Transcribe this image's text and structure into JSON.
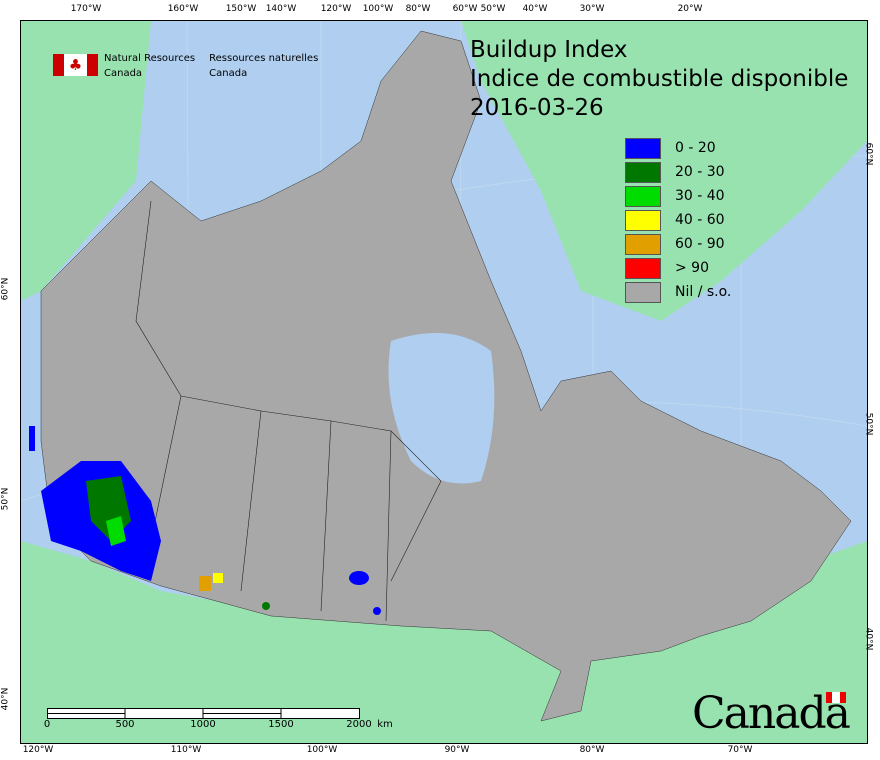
{
  "title": {
    "line1": "Buildup Index",
    "line2": "Indice de combustible disponible",
    "date": "2016-03-26"
  },
  "agency": {
    "en_line1": "Natural Resources",
    "en_line2": "Canada",
    "fr_line1": "Ressources naturelles",
    "fr_line2": "Canada"
  },
  "legend": [
    {
      "label": "0 - 20",
      "color": "#0000ff"
    },
    {
      "label": "20 - 30",
      "color": "#007800"
    },
    {
      "label": "30 - 40",
      "color": "#00dc00"
    },
    {
      "label": "40 - 60",
      "color": "#ffff00"
    },
    {
      "label": "60 - 90",
      "color": "#e1a000"
    },
    {
      "label": "> 90",
      "color": "#ff0000"
    },
    {
      "label": "Nil / s.o.",
      "color": "#a8a8a8"
    }
  ],
  "top_ticks": [
    "170°W",
    "160°W",
    "150°W",
    "140°W",
    "120°W",
    "100°W",
    "80°W",
    "60°W",
    "50°W",
    "40°W",
    "30°W",
    "20°W"
  ],
  "bottom_ticks": [
    "120°W",
    "110°W",
    "100°W",
    "90°W",
    "80°W",
    "70°W"
  ],
  "left_ticks": [
    "60°N",
    "50°N",
    "40°N"
  ],
  "right_ticks": [
    "60°N",
    "50°N",
    "40°N"
  ],
  "scale": {
    "labels": [
      "0",
      "500",
      "1000",
      "1500",
      "2000"
    ],
    "unit": "km"
  },
  "wordmark": "Canada",
  "colors": {
    "ocean": "#b0cff0",
    "foreign_land": "#98e2b0",
    "canada_nil": "#a8a8a8"
  }
}
